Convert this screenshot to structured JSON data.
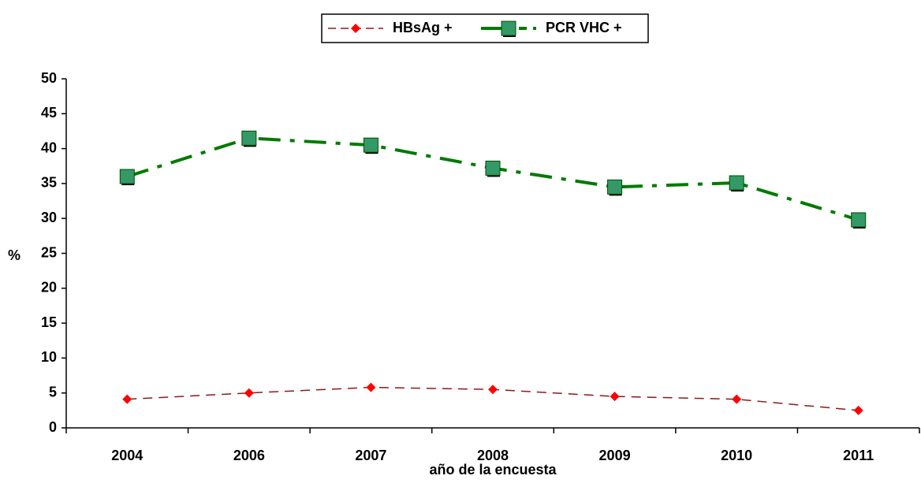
{
  "chart_data": {
    "type": "line",
    "x_label": "año de la encuesta",
    "y_label": "%",
    "categories": [
      "2004",
      "2006",
      "2007",
      "2008",
      "2009",
      "2010",
      "2011"
    ],
    "series": [
      {
        "name": "HBsAg +",
        "color": "#8b1a1a",
        "marker_color": "#ff0000",
        "values": [
          4.1,
          5.0,
          5.8,
          5.5,
          4.5,
          4.1,
          2.5
        ]
      },
      {
        "name": "PCR VHC +",
        "color": "#007a00",
        "marker_color": "#339966",
        "values": [
          36.0,
          41.5,
          40.5,
          37.2,
          34.5,
          35.1,
          29.8
        ]
      }
    ],
    "ylim": [
      0,
      50
    ],
    "yticks": [
      0,
      5,
      10,
      15,
      20,
      25,
      30,
      35,
      40,
      45,
      50
    ],
    "grid": false
  }
}
